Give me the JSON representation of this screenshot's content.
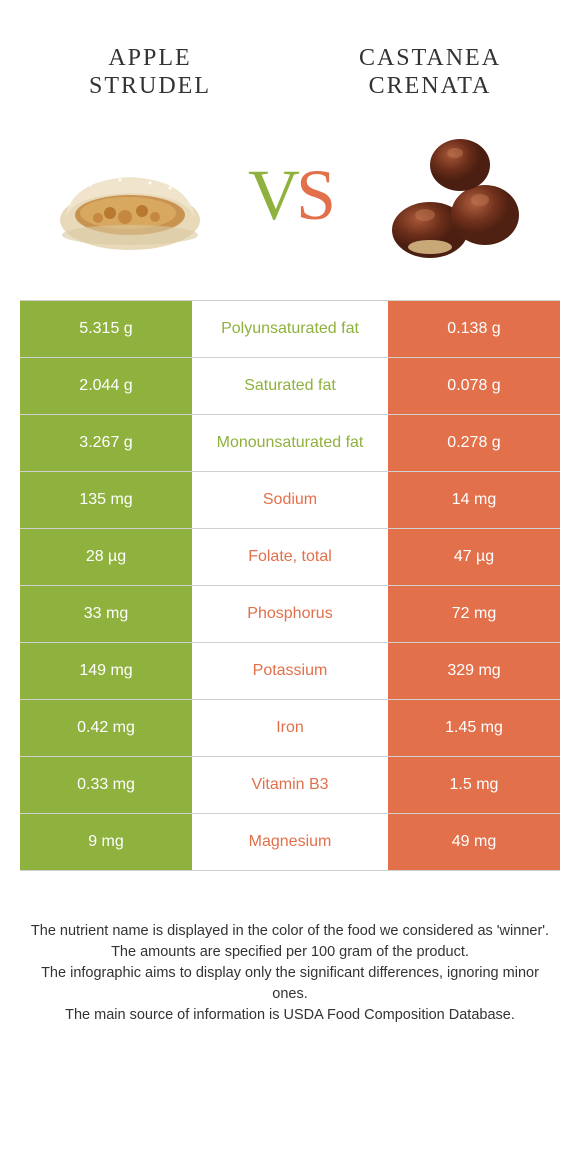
{
  "colors": {
    "green": "#8fb13d",
    "orange": "#e2704b",
    "border": "#d0d0d0",
    "text": "#333333",
    "white": "#ffffff"
  },
  "food_left": {
    "name": "Apple Strudel"
  },
  "food_right": {
    "name": "Castanea crenata"
  },
  "vs": {
    "v": "V",
    "s": "S"
  },
  "rows": [
    {
      "left": "5.315 g",
      "label": "Polyunsaturated fat",
      "right": "0.138 g",
      "winner": "green"
    },
    {
      "left": "2.044 g",
      "label": "Saturated fat",
      "right": "0.078 g",
      "winner": "green"
    },
    {
      "left": "3.267 g",
      "label": "Monounsaturated fat",
      "right": "0.278 g",
      "winner": "green"
    },
    {
      "left": "135 mg",
      "label": "Sodium",
      "right": "14 mg",
      "winner": "orange"
    },
    {
      "left": "28 µg",
      "label": "Folate, total",
      "right": "47 µg",
      "winner": "orange"
    },
    {
      "left": "33 mg",
      "label": "Phosphorus",
      "right": "72 mg",
      "winner": "orange"
    },
    {
      "left": "149 mg",
      "label": "Potassium",
      "right": "329 mg",
      "winner": "orange"
    },
    {
      "left": "0.42 mg",
      "label": "Iron",
      "right": "1.45 mg",
      "winner": "orange"
    },
    {
      "left": "0.33 mg",
      "label": "Vitamin B3",
      "right": "1.5 mg",
      "winner": "orange"
    },
    {
      "left": "9 mg",
      "label": "Magnesium",
      "right": "49 mg",
      "winner": "orange"
    }
  ],
  "footnotes": [
    "The nutrient name is displayed in the color of the food we considered as 'winner'.",
    "The amounts are specified per 100 gram of the product.",
    "The infographic aims to display only the significant differences, ignoring minor ones.",
    "The main source of information is USDA Food Composition Database."
  ]
}
